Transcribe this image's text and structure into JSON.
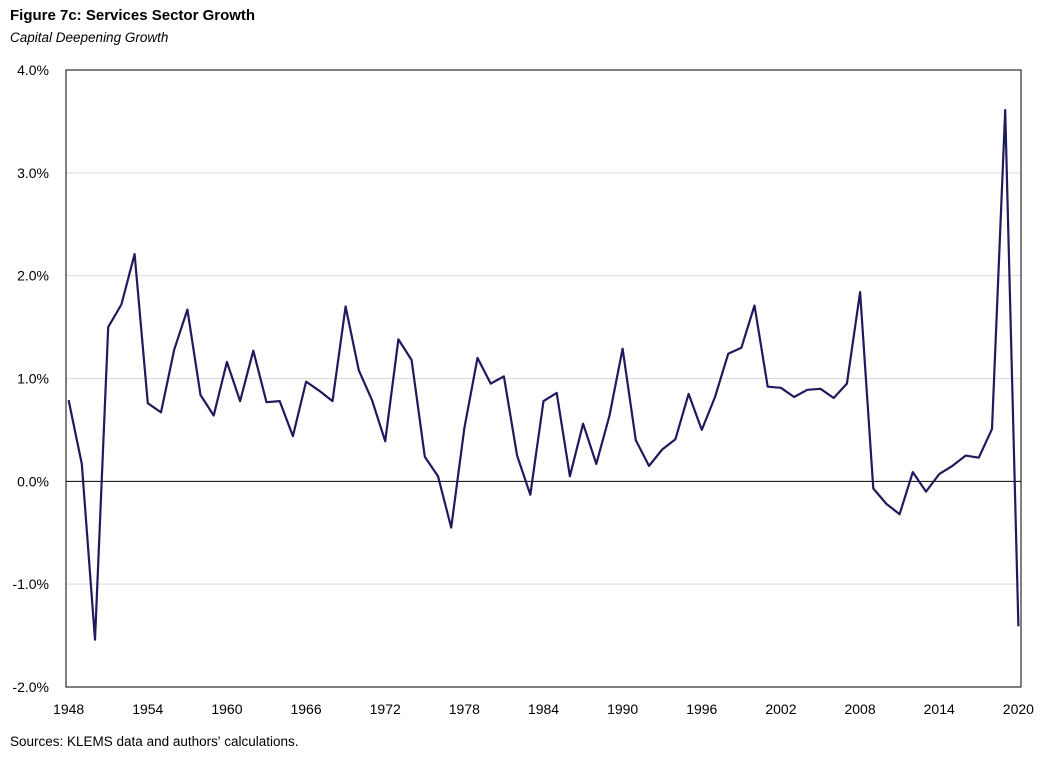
{
  "chart_data": {
    "type": "line",
    "title": "Figure 7c: Services Sector Growth",
    "subtitle": "Capital Deepening Growth",
    "source": "Sources: KLEMS data and authors' calculations.",
    "xlabel": "",
    "ylabel": "",
    "xlim": [
      1947.8,
      2020.2
    ],
    "ylim": [
      -2.0,
      4.0
    ],
    "y_ticks": [
      4.0,
      3.0,
      2.0,
      1.0,
      0.0,
      -1.0,
      -2.0
    ],
    "y_tick_labels": [
      "4.0%",
      "3.0%",
      "2.0%",
      "1.0%",
      "0.0%",
      "-1.0%",
      "-2.0%"
    ],
    "x_ticks": [
      1948,
      1954,
      1960,
      1966,
      1972,
      1978,
      1984,
      1990,
      1996,
      2002,
      2008,
      2014,
      2020
    ],
    "x_tick_labels": [
      "1948",
      "1954",
      "1960",
      "1966",
      "1972",
      "1978",
      "1984",
      "1990",
      "1996",
      "2002",
      "2008",
      "2014",
      "2020"
    ],
    "grid": "horizontal",
    "line_color": "#1f1a5c",
    "series": [
      {
        "x": [
          1948,
          1949,
          1950,
          1951,
          1952,
          1953,
          1954,
          1955,
          1956,
          1957,
          1958,
          1959,
          1960,
          1961,
          1962,
          1963,
          1964,
          1965,
          1966,
          1967,
          1968,
          1969,
          1970,
          1971,
          1972,
          1973,
          1974,
          1975,
          1976,
          1977,
          1978,
          1979,
          1980,
          1981,
          1982,
          1983,
          1984,
          1985,
          1986,
          1987,
          1988,
          1989,
          1990,
          1991,
          1992,
          1993,
          1994,
          1995,
          1996,
          1997,
          1998,
          1999,
          2000,
          2001,
          2002,
          2003,
          2004,
          2005,
          2006,
          2007,
          2008,
          2009,
          2010,
          2011,
          2012,
          2013,
          2014,
          2015,
          2016,
          2017,
          2018,
          2019,
          2020
        ],
        "values": [
          0.79,
          0.17,
          -1.54,
          1.5,
          1.72,
          2.21,
          0.76,
          0.67,
          1.28,
          1.67,
          0.84,
          0.64,
          1.16,
          0.78,
          1.27,
          0.77,
          0.78,
          0.44,
          0.97,
          0.88,
          0.78,
          1.7,
          1.08,
          0.79,
          0.39,
          1.38,
          1.18,
          0.24,
          0.05,
          -0.45,
          0.52,
          1.2,
          0.95,
          1.02,
          0.25,
          -0.13,
          0.78,
          0.86,
          0.05,
          0.56,
          0.17,
          0.64,
          1.29,
          0.4,
          0.15,
          0.31,
          0.41,
          0.85,
          0.5,
          0.82,
          1.24,
          1.3,
          1.71,
          0.92,
          0.91,
          0.82,
          0.89,
          0.9,
          0.81,
          0.95,
          1.84,
          -0.07,
          -0.22,
          -0.32,
          0.09,
          -0.1,
          0.07,
          0.15,
          0.25,
          0.23,
          0.51,
          3.61,
          -1.41
        ]
      }
    ]
  }
}
